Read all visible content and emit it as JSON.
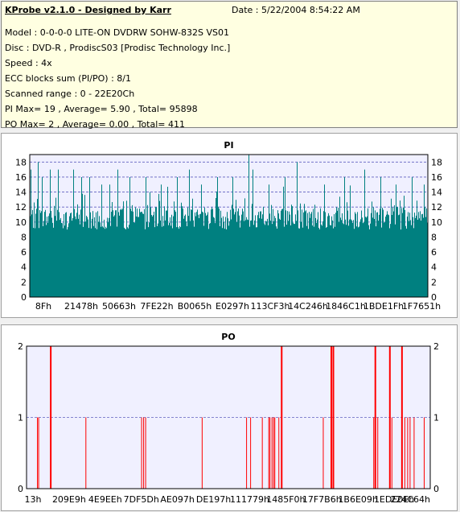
{
  "info": {
    "title": "KProbe v2.1.0 - Designed by Karr",
    "date": "Date : 5/22/2004 8:54:22 AM",
    "lines": [
      "Model : 0-0-0-0 LITE-ON DVDRW SOHW-832S  VS01",
      "Disc : DVD-R , ProdiscS03   [Prodisc Technology Inc.]",
      "Speed : 4x",
      "ECC blocks sum (PI/PO) : 8/1",
      "Scanned range : 0 - 22E20Ch",
      "PI Max= 19 , Average= 5.90 , Total= 95898",
      "PO Max= 2 , Average= 0.00 , Total= 411"
    ]
  },
  "colors": {
    "pi": "#008080",
    "po": "#ff0000",
    "plot_bg": "#f0f0ff",
    "title": "#000080"
  },
  "chart_data": [
    {
      "type": "bar",
      "title": "PI",
      "ylim": [
        0,
        19
      ],
      "yticks": [
        0,
        2,
        4,
        6,
        8,
        10,
        12,
        14,
        16,
        18
      ],
      "grid": true,
      "xtick_labels": [
        "8Fh",
        "21478h",
        "50663h",
        "7FE22h",
        "B0065h",
        "E0297h",
        "113CF3h",
        "14C246h",
        "1846C1h",
        "1BDE1Fh",
        "1F7651h"
      ],
      "baseline": {
        "low": 9,
        "high": 12
      },
      "peaks": [
        [
          0.003,
          17
        ],
        [
          0.02,
          18
        ],
        [
          0.03,
          16
        ],
        [
          0.05,
          17
        ],
        [
          0.07,
          17
        ],
        [
          0.11,
          17
        ],
        [
          0.13,
          16
        ],
        [
          0.15,
          16
        ],
        [
          0.18,
          15
        ],
        [
          0.2,
          15
        ],
        [
          0.22,
          17
        ],
        [
          0.25,
          16
        ],
        [
          0.29,
          16
        ],
        [
          0.33,
          15
        ],
        [
          0.37,
          16
        ],
        [
          0.4,
          17
        ],
        [
          0.43,
          15
        ],
        [
          0.47,
          16
        ],
        [
          0.51,
          16
        ],
        [
          0.55,
          19
        ],
        [
          0.56,
          17
        ],
        [
          0.6,
          15
        ],
        [
          0.64,
          16
        ],
        [
          0.67,
          18
        ],
        [
          0.7,
          16
        ],
        [
          0.74,
          15
        ],
        [
          0.79,
          16
        ],
        [
          0.84,
          17
        ],
        [
          0.88,
          16
        ],
        [
          0.92,
          15
        ],
        [
          0.96,
          16
        ],
        [
          0.99,
          15
        ]
      ]
    },
    {
      "type": "bar",
      "title": "PO",
      "ylim": [
        0,
        2
      ],
      "yticks": [
        0,
        1,
        2
      ],
      "grid": true,
      "xtick_labels": [
        "13h",
        "209E9h",
        "4E9EEh",
        "7DF5Dh",
        "AE097h",
        "DE197h",
        "111779h",
        "1485F0h",
        "17F7B6h",
        "1B6E09h",
        "1EDE0Eh",
        "224C64h"
      ],
      "bars": [
        [
          0.027,
          1
        ],
        [
          0.03,
          1
        ],
        [
          0.06,
          2
        ],
        [
          0.147,
          1
        ],
        [
          0.285,
          1
        ],
        [
          0.29,
          1
        ],
        [
          0.295,
          1
        ],
        [
          0.435,
          1
        ],
        [
          0.545,
          1
        ],
        [
          0.555,
          1
        ],
        [
          0.584,
          1
        ],
        [
          0.6,
          1
        ],
        [
          0.603,
          1
        ],
        [
          0.608,
          1
        ],
        [
          0.612,
          1
        ],
        [
          0.615,
          1
        ],
        [
          0.625,
          1
        ],
        [
          0.632,
          2
        ],
        [
          0.735,
          1
        ],
        [
          0.755,
          2
        ],
        [
          0.76,
          2
        ],
        [
          0.86,
          1
        ],
        [
          0.864,
          2
        ],
        [
          0.87,
          1
        ],
        [
          0.905,
          1
        ],
        [
          0.9,
          2
        ],
        [
          0.93,
          2
        ],
        [
          0.937,
          1
        ],
        [
          0.944,
          1
        ],
        [
          0.95,
          1
        ],
        [
          0.96,
          1
        ],
        [
          0.985,
          1
        ]
      ]
    }
  ]
}
